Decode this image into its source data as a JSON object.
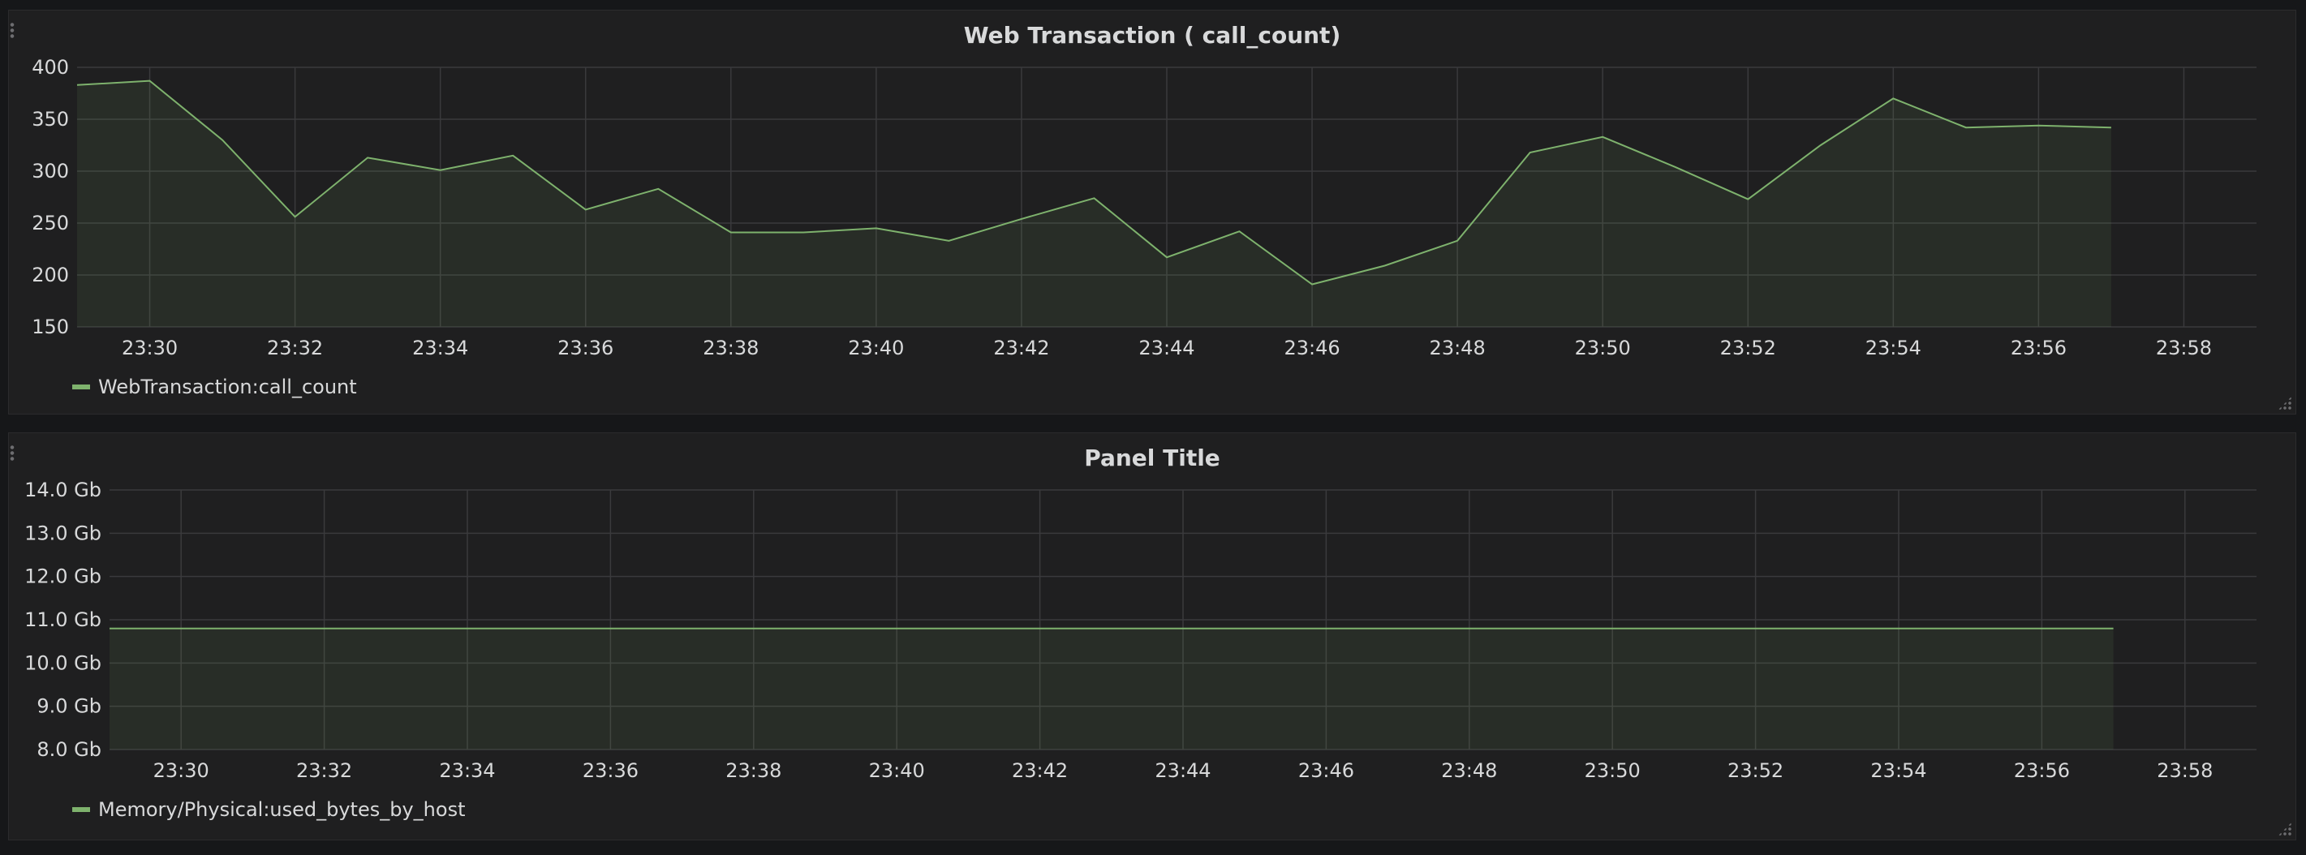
{
  "colors": {
    "series": "#7eb26d",
    "grid": "#3a3a3c",
    "text": "#d8d9da",
    "panel_bg": "#1f1f20"
  },
  "chart_data": [
    {
      "type": "area",
      "title": "Web Transaction ( call_count)",
      "xlabel": "",
      "ylabel": "",
      "x_unit": "minutes",
      "xlim": [
        "23:29",
        "23:59"
      ],
      "ylim": [
        150,
        400
      ],
      "x_ticks": [
        "23:30",
        "23:32",
        "23:34",
        "23:36",
        "23:38",
        "23:40",
        "23:42",
        "23:44",
        "23:46",
        "23:48",
        "23:50",
        "23:52",
        "23:54",
        "23:56",
        "23:58"
      ],
      "y_ticks": [
        "400",
        "350",
        "300",
        "250",
        "200",
        "150"
      ],
      "grid": true,
      "legend_position": "bottom-left",
      "series": [
        {
          "name": "WebTransaction:call_count",
          "x": [
            "23:29",
            "23:30",
            "23:31",
            "23:32",
            "23:33",
            "23:34",
            "23:35",
            "23:36",
            "23:37",
            "23:38",
            "23:39",
            "23:40",
            "23:41",
            "23:42",
            "23:43",
            "23:44",
            "23:45",
            "23:46",
            "23:47",
            "23:48",
            "23:49",
            "23:50",
            "23:51",
            "23:52",
            "23:53",
            "23:54",
            "23:55",
            "23:56",
            "23:57"
          ],
          "values": [
            383,
            387,
            330,
            256,
            313,
            301,
            315,
            263,
            283,
            241,
            241,
            245,
            233,
            254,
            274,
            217,
            242,
            191,
            209,
            233,
            318,
            333,
            304,
            273,
            325,
            370,
            342,
            344,
            342
          ]
        }
      ]
    },
    {
      "type": "area",
      "title": "Panel Title",
      "xlabel": "",
      "ylabel": "",
      "xlim": [
        "23:29",
        "23:59"
      ],
      "ylim": [
        8.0,
        14.0
      ],
      "x_ticks": [
        "23:30",
        "23:32",
        "23:34",
        "23:36",
        "23:38",
        "23:40",
        "23:42",
        "23:44",
        "23:46",
        "23:48",
        "23:50",
        "23:52",
        "23:54",
        "23:56",
        "23:58"
      ],
      "y_ticks": [
        "14.0 Gb",
        "13.0 Gb",
        "12.0 Gb",
        "11.0 Gb",
        "10.0 Gb",
        "9.0 Gb",
        "8.0 Gb"
      ],
      "grid": true,
      "legend_position": "bottom-left",
      "series": [
        {
          "name": "Memory/Physical:used_bytes_by_host",
          "x": [
            "23:29",
            "23:57"
          ],
          "values": [
            10.8,
            10.8
          ]
        }
      ]
    }
  ]
}
